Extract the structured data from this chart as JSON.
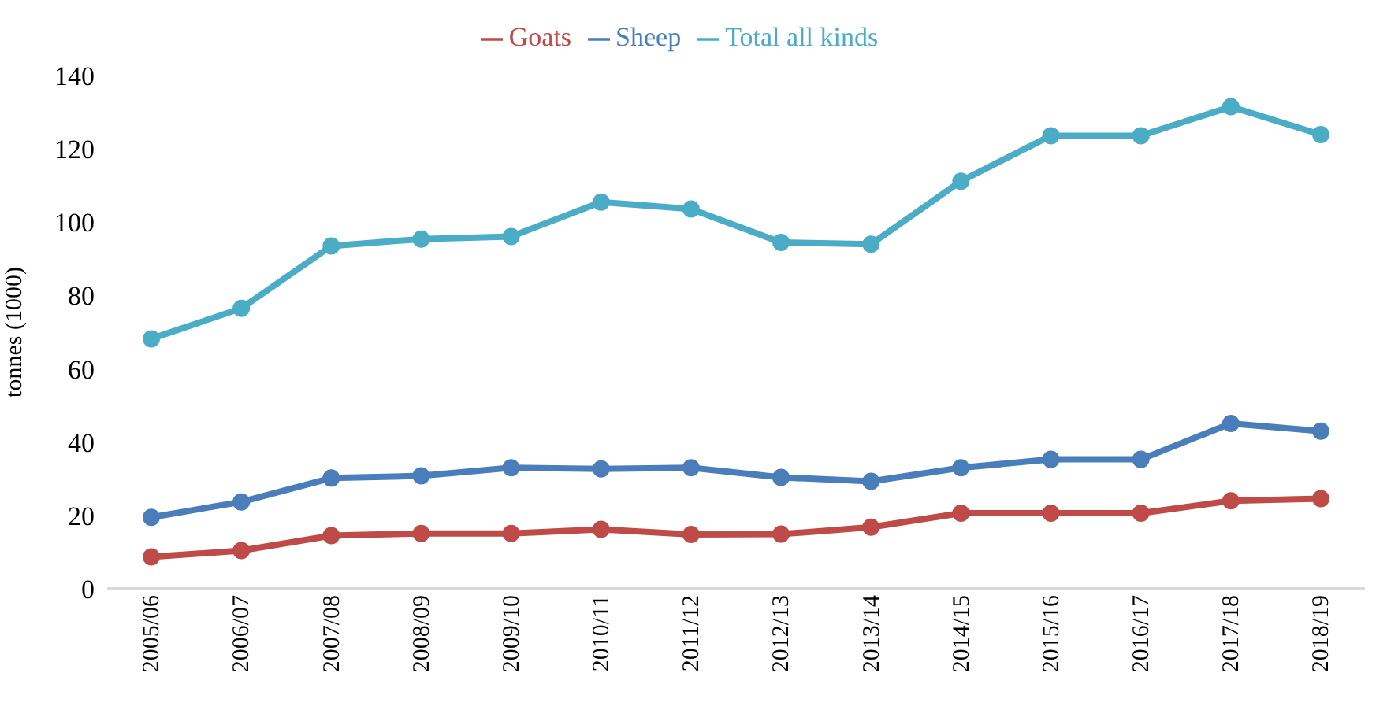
{
  "chart_data": {
    "type": "line",
    "ylabel": "tonnes (1000)",
    "categories": [
      "2005/06",
      "2006/07",
      "2007/08",
      "2008/09",
      "2009/10",
      "2010/11",
      "2011/12",
      "2012/13",
      "2013/14",
      "2014/15",
      "2015/16",
      "2016/17",
      "2017/18",
      "2018/19"
    ],
    "series": [
      {
        "name": "Sheep",
        "color": "#4a7ebb",
        "values": [
          19.5,
          23.7,
          30.2,
          30.8,
          33,
          32.7,
          33,
          30.4,
          29.3,
          33,
          35.3,
          35.3,
          45.1,
          43
        ]
      },
      {
        "name": "Goats",
        "color": "#be4b48",
        "values": [
          8.7,
          10.4,
          14.5,
          15.1,
          15.1,
          16.2,
          14.8,
          14.9,
          16.8,
          20.6,
          20.6,
          20.6,
          24,
          24.6
        ]
      },
      {
        "name": "Total all kinds",
        "color": "#4bacc6",
        "values": [
          68.2,
          76.5,
          93.5,
          95.4,
          96.1,
          105.5,
          103.6,
          94.5,
          94,
          111.2,
          123.6,
          123.6,
          131.5,
          123.9
        ]
      }
    ],
    "ylim": [
      0,
      140
    ],
    "yticks": [
      0,
      20,
      40,
      60,
      80,
      100,
      120,
      140
    ],
    "grid": false,
    "legend": "top",
    "marker": "circle",
    "line_style": "solid"
  }
}
